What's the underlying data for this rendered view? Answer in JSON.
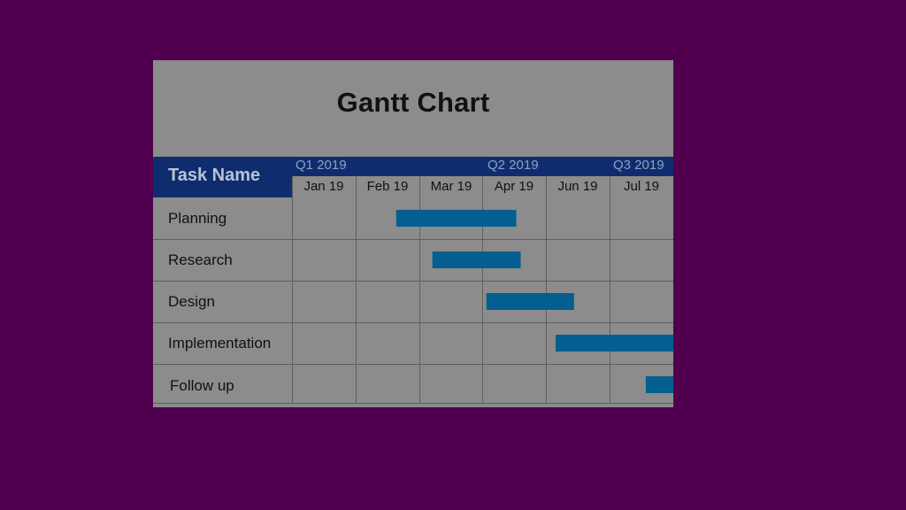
{
  "chart_data": {
    "type": "gantt",
    "title": "Gantt Chart",
    "task_header": "Task Name",
    "quarters": [
      "Q1 2019",
      "Q2 2019",
      "Q3 2019"
    ],
    "months": [
      "Jan 19",
      "Feb 19",
      "Mar 19",
      "Apr 19",
      "Jun 19",
      "Jul 19"
    ],
    "tasks": [
      {
        "name": "Planning",
        "start": 1.64,
        "end": 3.53
      },
      {
        "name": "Research",
        "start": 2.21,
        "end": 3.6
      },
      {
        "name": "Design",
        "start": 3.06,
        "end": 4.44
      },
      {
        "name": "Implementation",
        "start": 4.15,
        "end": 6.18
      },
      {
        "name": "Follow up",
        "start": 5.57,
        "end": 6.58
      }
    ],
    "bar_color": "#025f8f"
  },
  "colors": {
    "background": "#50004f",
    "card": "#8c8c8c",
    "header_band": "#0f2d6e",
    "grid_line": "#5f5f5f"
  }
}
